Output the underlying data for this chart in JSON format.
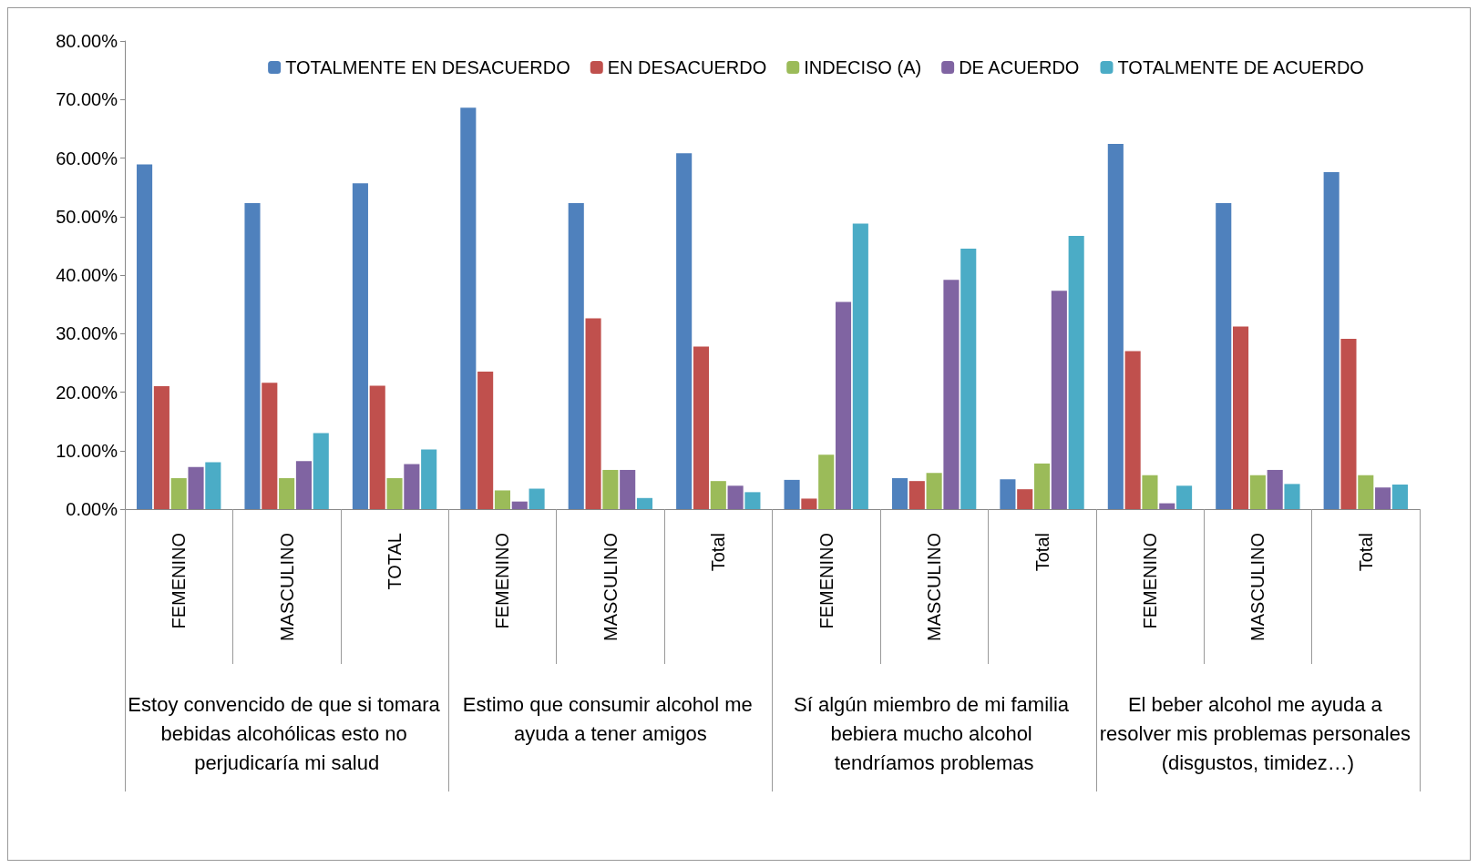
{
  "chart_data": {
    "type": "bar",
    "categories": [
      "FEMENINO",
      "MASCULINO",
      "TOTAL",
      "FEMENINO",
      "MASCULINO",
      "Total",
      "FEMENINO",
      "MASCULINO",
      "Total",
      "FEMENINO",
      "MASCULINO",
      "Total"
    ],
    "annotations": [
      "Estoy convencido de que si tomara bebidas alcohólicas esto no perjudicaría mi salud",
      "Estimo que consumir alcohol me ayuda a tener amigos",
      "Sí algún miembro de mi familia bebiera mucho alcohol tendríamos problemas",
      "El beber alcohol me ayuda a resolver mis problemas personales (disgustos, timidez…)"
    ],
    "series": [
      {
        "name": "TOTALMENTE EN DESACUERDO",
        "color": "#4f81bd",
        "values": [
          58.9,
          52.3,
          55.7,
          68.6,
          52.3,
          60.8,
          5.0,
          5.3,
          5.1,
          62.4,
          52.3,
          57.6
        ]
      },
      {
        "name": "EN DESACUERDO",
        "color": "#c0504d",
        "values": [
          21.0,
          21.6,
          21.1,
          23.5,
          32.6,
          27.8,
          1.8,
          4.8,
          3.4,
          27.0,
          31.2,
          29.1
        ]
      },
      {
        "name": "INDECISO (A)",
        "color": "#9bbb59",
        "values": [
          5.3,
          5.3,
          5.3,
          3.2,
          6.7,
          4.8,
          9.3,
          6.2,
          7.8,
          5.8,
          5.8,
          5.8
        ]
      },
      {
        "name": "DE ACUERDO",
        "color": "#8064a2",
        "values": [
          7.2,
          8.2,
          7.7,
          1.3,
          6.7,
          4.0,
          35.4,
          39.2,
          37.3,
          1.0,
          6.7,
          3.7
        ]
      },
      {
        "name": "TOTALMENTE DE ACUERDO",
        "color": "#4bacc6",
        "values": [
          8.0,
          13.0,
          10.2,
          3.5,
          1.9,
          2.9,
          48.8,
          44.5,
          46.7,
          4.0,
          4.3,
          4.2
        ]
      }
    ],
    "ylim": [
      0,
      80
    ],
    "yticks": [
      {
        "value": 0,
        "label": "0.00%"
      },
      {
        "value": 10,
        "label": "10.00%"
      },
      {
        "value": 20,
        "label": "20.00%"
      },
      {
        "value": 30,
        "label": "30.00%"
      },
      {
        "value": 40,
        "label": "40.00%"
      },
      {
        "value": 50,
        "label": "50.00%"
      },
      {
        "value": 60,
        "label": "60.00%"
      },
      {
        "value": 70,
        "label": "70.00%"
      },
      {
        "value": 80,
        "label": "80.00%"
      }
    ],
    "legend": "top right"
  }
}
